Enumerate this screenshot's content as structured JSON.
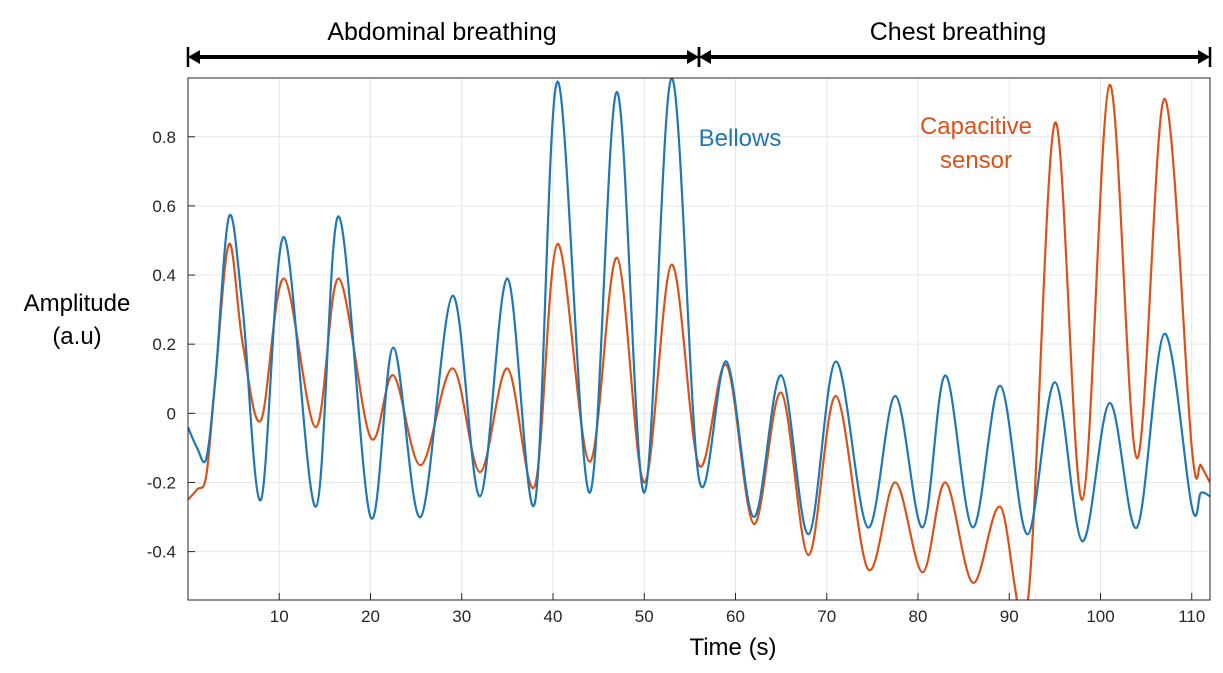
{
  "chart_data": {
    "type": "line",
    "xlabel": "Time (s)",
    "ylabel_line1": "Amplitude",
    "ylabel_line2": "(a.u)",
    "xlim": [
      0,
      112
    ],
    "ylim": [
      -0.54,
      0.97
    ],
    "xticks": [
      10,
      20,
      30,
      40,
      50,
      60,
      70,
      80,
      90,
      100,
      110
    ],
    "xtick_labels": [
      "10",
      "20",
      "30",
      "40",
      "50",
      "60",
      "70",
      "80",
      "90",
      "100",
      "110"
    ],
    "yticks": [
      -0.4,
      -0.2,
      0,
      0.2,
      0.4,
      0.6,
      0.8
    ],
    "ytick_labels": [
      "-0.4",
      "-0.2",
      "0",
      "0.2",
      "0.4",
      "0.6",
      "0.8"
    ],
    "grid": true,
    "phases": [
      {
        "label": "Abdominal breathing",
        "start": 0,
        "end": 56
      },
      {
        "label": "Chest breathing",
        "start": 56,
        "end": 112
      }
    ],
    "series": [
      {
        "name": "Bellows",
        "label_line1": "Bellows",
        "color": "#1f77b4",
        "points": [
          [
            0,
            -0.04
          ],
          [
            1,
            -0.1
          ],
          [
            2,
            -0.13
          ],
          [
            3,
            0.1
          ],
          [
            4.5,
            0.57
          ],
          [
            6,
            0.3
          ],
          [
            8,
            -0.25
          ],
          [
            10.5,
            0.51
          ],
          [
            14,
            -0.27
          ],
          [
            16.5,
            0.57
          ],
          [
            20,
            -0.3
          ],
          [
            22.5,
            0.19
          ],
          [
            25.5,
            -0.3
          ],
          [
            29,
            0.34
          ],
          [
            32,
            -0.24
          ],
          [
            35,
            0.39
          ],
          [
            38,
            -0.26
          ],
          [
            40.5,
            0.96
          ],
          [
            44,
            -0.23
          ],
          [
            47,
            0.93
          ],
          [
            50,
            -0.23
          ],
          [
            53,
            0.97
          ],
          [
            56,
            -0.19
          ],
          [
            59,
            0.15
          ],
          [
            62,
            -0.3
          ],
          [
            65,
            0.11
          ],
          [
            68,
            -0.35
          ],
          [
            71,
            0.15
          ],
          [
            74.5,
            -0.33
          ],
          [
            77.5,
            0.05
          ],
          [
            80.5,
            -0.33
          ],
          [
            83,
            0.11
          ],
          [
            86,
            -0.33
          ],
          [
            89,
            0.08
          ],
          [
            92,
            -0.35
          ],
          [
            95,
            0.09
          ],
          [
            98,
            -0.37
          ],
          [
            101,
            0.03
          ],
          [
            104,
            -0.33
          ],
          [
            107,
            0.23
          ],
          [
            110,
            -0.27
          ],
          [
            111,
            -0.23
          ],
          [
            112,
            -0.24
          ]
        ]
      },
      {
        "name": "Capacitive sensor",
        "label_line1": "Capacitive",
        "label_line2": "sensor",
        "color": "#d95319",
        "points": [
          [
            0,
            -0.25
          ],
          [
            1,
            -0.22
          ],
          [
            2,
            -0.18
          ],
          [
            3,
            0.1
          ],
          [
            4.5,
            0.49
          ],
          [
            6,
            0.2
          ],
          [
            8,
            -0.02
          ],
          [
            10.5,
            0.39
          ],
          [
            14,
            -0.04
          ],
          [
            16.5,
            0.39
          ],
          [
            20,
            -0.07
          ],
          [
            22.5,
            0.11
          ],
          [
            25.5,
            -0.15
          ],
          [
            29,
            0.13
          ],
          [
            32,
            -0.17
          ],
          [
            35,
            0.13
          ],
          [
            38,
            -0.21
          ],
          [
            40.5,
            0.49
          ],
          [
            44,
            -0.14
          ],
          [
            47,
            0.45
          ],
          [
            50,
            -0.2
          ],
          [
            53,
            0.43
          ],
          [
            56,
            -0.15
          ],
          [
            59,
            0.14
          ],
          [
            62,
            -0.32
          ],
          [
            65,
            0.06
          ],
          [
            68,
            -0.41
          ],
          [
            71,
            0.05
          ],
          [
            74.5,
            -0.45
          ],
          [
            77.5,
            -0.2
          ],
          [
            80.5,
            -0.46
          ],
          [
            83,
            -0.2
          ],
          [
            86,
            -0.49
          ],
          [
            89,
            -0.27
          ],
          [
            92,
            -0.55
          ],
          [
            95,
            0.84
          ],
          [
            98,
            -0.25
          ],
          [
            101,
            0.95
          ],
          [
            104,
            -0.13
          ],
          [
            107,
            0.91
          ],
          [
            110,
            -0.1
          ],
          [
            111,
            -0.15
          ],
          [
            112,
            -0.2
          ]
        ]
      }
    ]
  }
}
